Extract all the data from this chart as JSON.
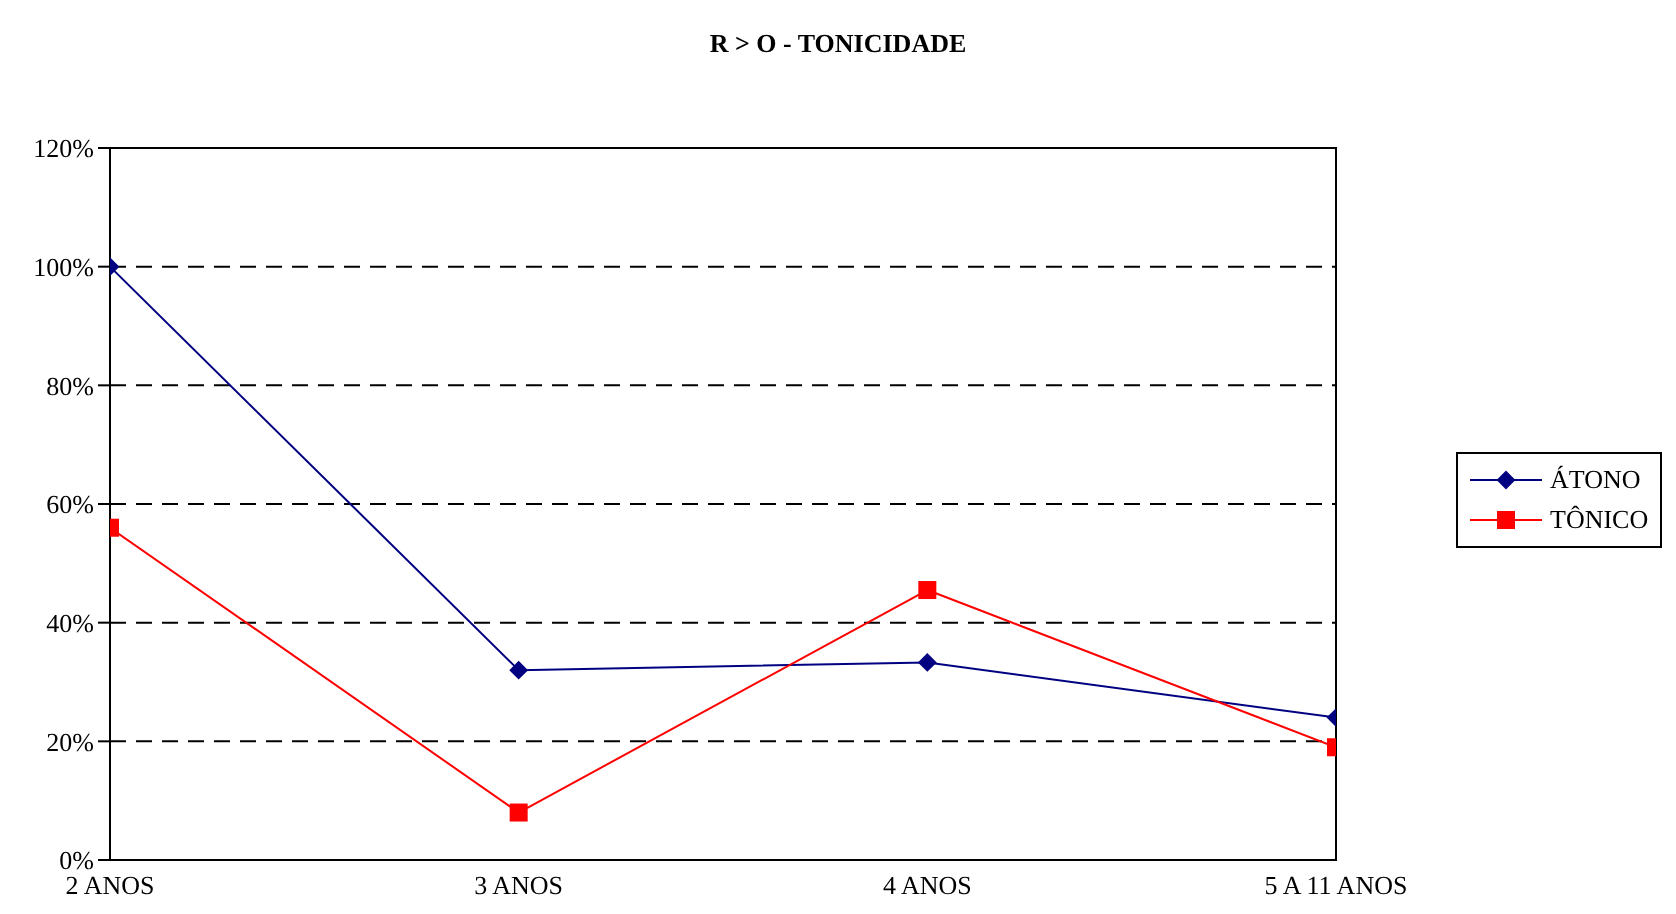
{
  "chart_data": {
    "type": "line",
    "title": "R > O - TONICIDADE",
    "categories": [
      "2 ANOS",
      "3 ANOS",
      "4 ANOS",
      "5 A 11 ANOS"
    ],
    "series": [
      {
        "name": "ÁTONO",
        "color": "#000080",
        "marker": "diamond",
        "values": [
          100,
          32,
          33.3,
          24
        ]
      },
      {
        "name": "TÔNICO",
        "color": "#ff0000",
        "marker": "square",
        "values": [
          56,
          8,
          45.5,
          19
        ]
      }
    ],
    "ylim": [
      0,
      120
    ],
    "yticks": [
      {
        "value": 0,
        "label": "0%"
      },
      {
        "value": 20,
        "label": "20%"
      },
      {
        "value": 40,
        "label": "40%"
      },
      {
        "value": 60,
        "label": "60%"
      },
      {
        "value": 80,
        "label": "80%"
      },
      {
        "value": 100,
        "label": "100%"
      },
      {
        "value": 120,
        "label": "120%"
      }
    ],
    "grid": "y",
    "legend": "right",
    "line_style": "solid"
  }
}
